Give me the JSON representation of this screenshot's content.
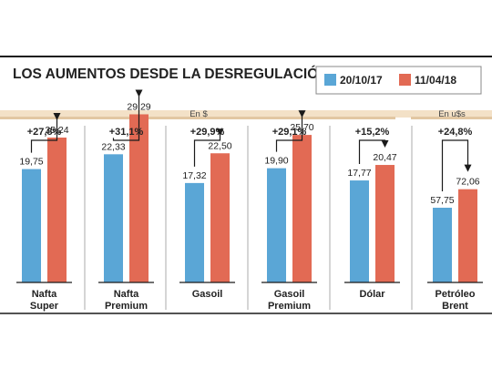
{
  "chart_data": {
    "type": "bar",
    "title": "LOS AUMENTOS DESDE LA DESREGULACIÓN",
    "legend": {
      "placement": "top-right",
      "items": [
        {
          "label": "20/10/17",
          "color": "#5aa6d6"
        },
        {
          "label": "11/04/18",
          "color": "#e26a54"
        }
      ]
    },
    "units": {
      "pesos": "En $",
      "dollars": "En u$s"
    },
    "categories": [
      {
        "label_line1": "Nafta",
        "label_line2": "Super",
        "before": 19.75,
        "after": 25.24,
        "before_label": "19,75",
        "after_label": "25,24",
        "change_label": "+27,8%"
      },
      {
        "label_line1": "Nafta",
        "label_line2": "Premium",
        "before": 22.33,
        "after": 29.29,
        "before_label": "22,33",
        "after_label": "29,29",
        "change_label": "+31,1%"
      },
      {
        "label_line1": "Gasoil",
        "label_line2": "",
        "before": 17.32,
        "after": 22.5,
        "before_label": "17,32",
        "after_label": "22,50",
        "change_label": "+29,9%"
      },
      {
        "label_line1": "Gasoil",
        "label_line2": "Premium",
        "before": 19.9,
        "after": 25.7,
        "before_label": "19,90",
        "after_label": "25,70",
        "change_label": "+29,1%"
      },
      {
        "label_line1": "Dólar",
        "label_line2": "",
        "before": 17.77,
        "after": 20.47,
        "before_label": "17,77",
        "after_label": "20,47",
        "change_label": "+15,2%"
      },
      {
        "label_line1": "Petróleo",
        "label_line2": "Brent",
        "before": 57.75,
        "after": 72.06,
        "before_label": "57,75",
        "after_label": "72,06",
        "change_label": "+24,8%"
      }
    ],
    "series": [
      {
        "name": "20/10/17",
        "color": "#5aa6d6",
        "values": [
          19.75,
          22.33,
          17.32,
          19.9,
          17.77,
          57.75
        ]
      },
      {
        "name": "11/04/18",
        "color": "#e26a54",
        "values": [
          25.24,
          29.29,
          22.5,
          25.7,
          20.47,
          72.06
        ]
      }
    ],
    "grid": false
  }
}
